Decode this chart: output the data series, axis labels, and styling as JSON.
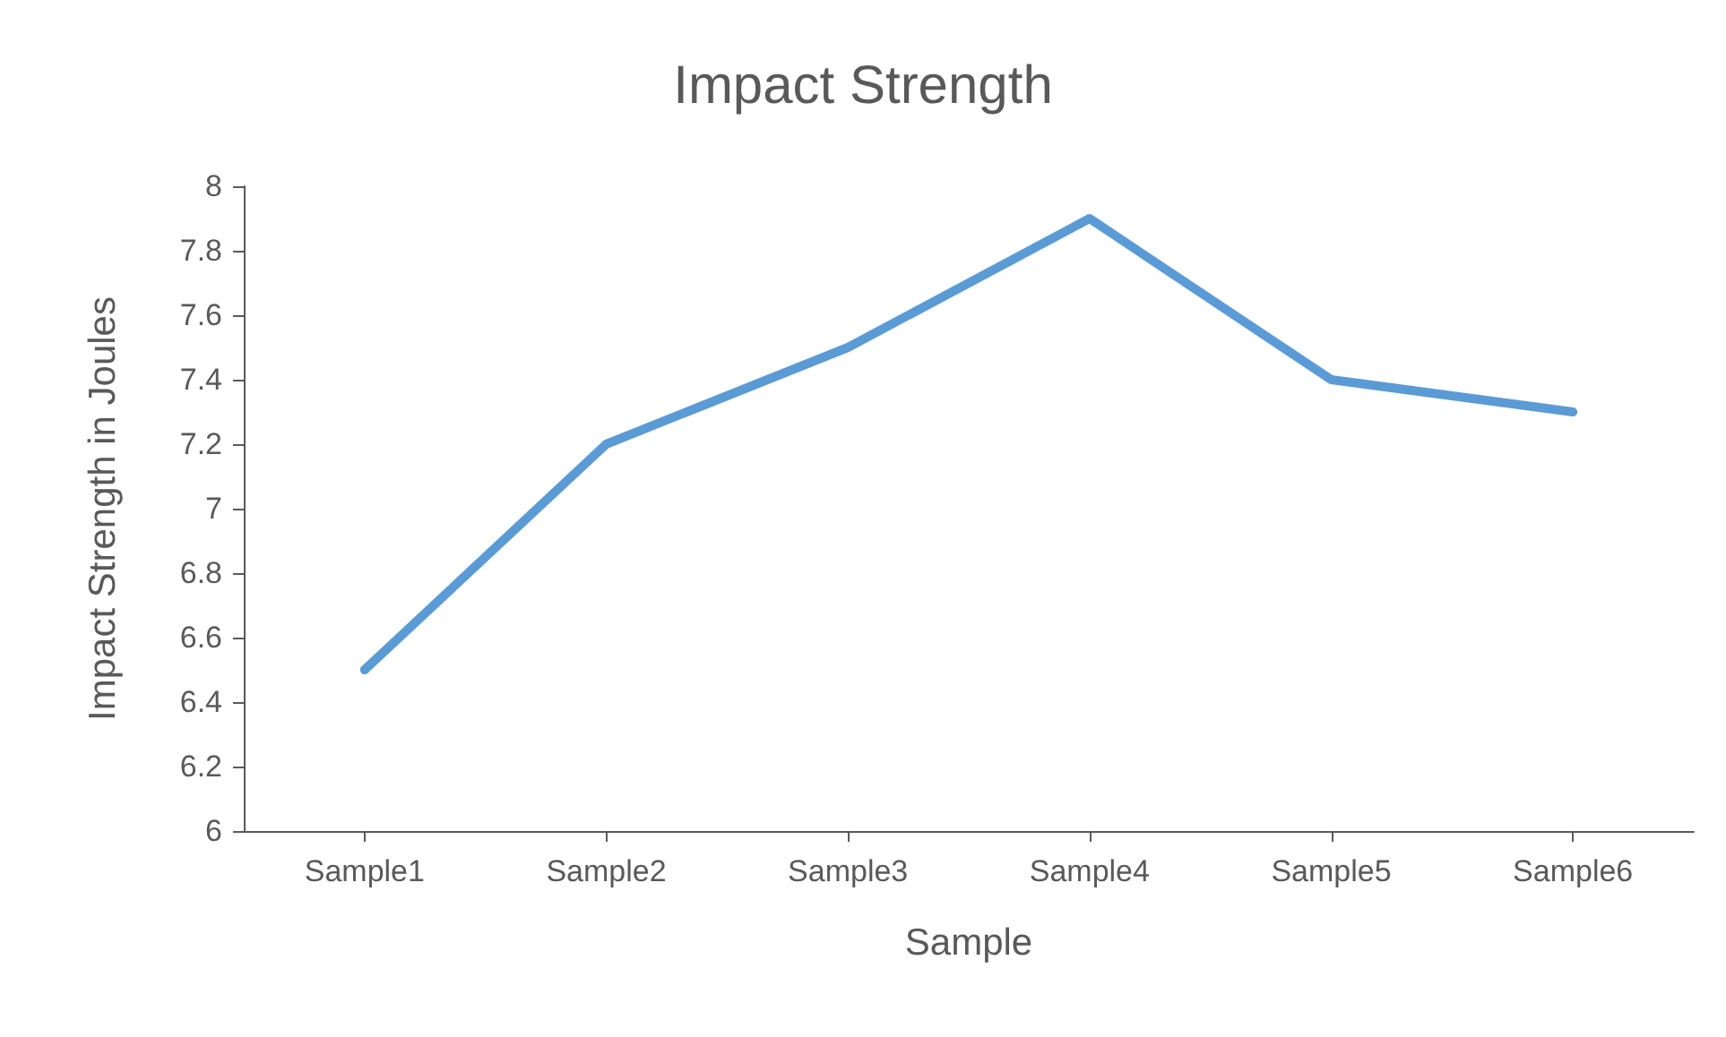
{
  "chart_data": {
    "type": "line",
    "title": "Impact Strength",
    "xlabel": "Sample",
    "ylabel": "Impact Strength in Joules",
    "categories": [
      "Sample1",
      "Sample2",
      "Sample3",
      "Sample4",
      "Sample5",
      "Sample6"
    ],
    "series": [
      {
        "color": "#5b9bd5",
        "values": [
          6.5,
          7.2,
          7.5,
          7.9,
          7.4,
          7.3
        ]
      }
    ],
    "ylim": [
      6,
      8
    ],
    "yticks": [
      6,
      6.2,
      6.4,
      6.6,
      6.8,
      7,
      7.2,
      7.4,
      7.6,
      7.8,
      8
    ],
    "grid": false,
    "marker": "none",
    "line_style": "solid"
  }
}
